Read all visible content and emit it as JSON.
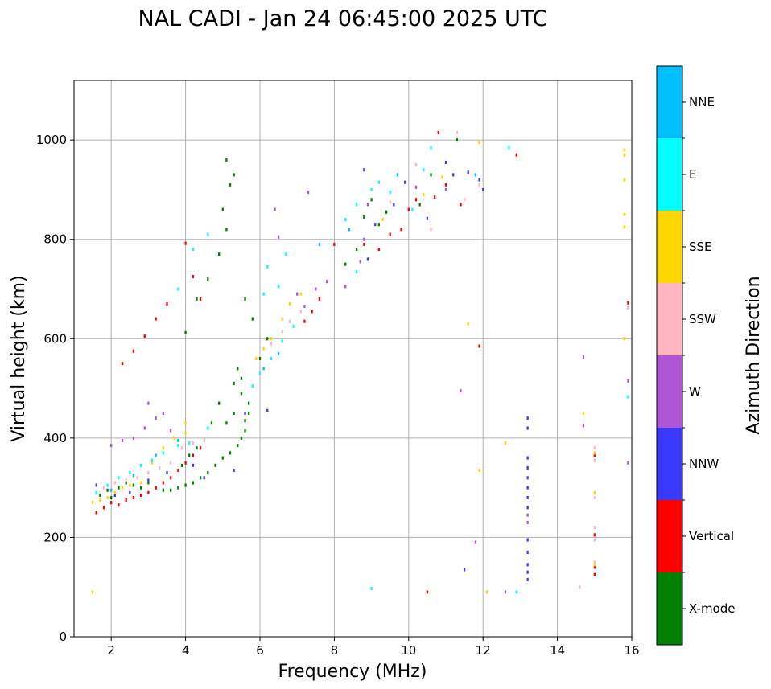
{
  "chart_data": {
    "type": "scatter",
    "title": "NAL CADI - Jan 24 06:45:00 2025 UTC",
    "xlabel": "Frequency (MHz)",
    "ylabel": "Virtual height (km)",
    "xlim": [
      1,
      16
    ],
    "ylim": [
      0,
      1120
    ],
    "xticks": [
      "2",
      "4",
      "6",
      "8",
      "10",
      "12",
      "14",
      "16"
    ],
    "yticks": [
      "0",
      "200",
      "400",
      "600",
      "800",
      "1000"
    ],
    "grid": true,
    "colorbar": {
      "label": "Azimuth Direction",
      "categories": [
        {
          "name": "X-mode",
          "color": "#008000"
        },
        {
          "name": "Vertical",
          "color": "#ff0000"
        },
        {
          "name": "NNW",
          "color": "#3a3aff"
        },
        {
          "name": "W",
          "color": "#b055d6"
        },
        {
          "name": "SSW",
          "color": "#ffb6c1"
        },
        {
          "name": "SSE",
          "color": "#ffd700"
        },
        {
          "name": "E",
          "color": "#00ffff"
        },
        {
          "name": "NNE",
          "color": "#00bfff"
        }
      ]
    },
    "point_width_mhz": 0.05,
    "point_height_km": 5,
    "series": [
      {
        "name": "X-mode",
        "points": [
          [
            1.7,
            285
          ],
          [
            1.9,
            295
          ],
          [
            2.0,
            280
          ],
          [
            2.2,
            300
          ],
          [
            2.4,
            310
          ],
          [
            2.6,
            305
          ],
          [
            2.8,
            300
          ],
          [
            3.0,
            310
          ],
          [
            3.2,
            300
          ],
          [
            3.4,
            295
          ],
          [
            3.6,
            295
          ],
          [
            3.8,
            300
          ],
          [
            4.0,
            305
          ],
          [
            4.2,
            310
          ],
          [
            4.4,
            320
          ],
          [
            4.6,
            330
          ],
          [
            4.8,
            345
          ],
          [
            5.0,
            360
          ],
          [
            5.2,
            370
          ],
          [
            5.4,
            385
          ],
          [
            5.5,
            400
          ],
          [
            5.6,
            415
          ],
          [
            5.6,
            435
          ],
          [
            5.7,
            450
          ],
          [
            5.7,
            470
          ],
          [
            5.5,
            490
          ],
          [
            5.3,
            510
          ],
          [
            4.9,
            470
          ],
          [
            4.7,
            430
          ],
          [
            4.5,
            395
          ],
          [
            4.3,
            380
          ],
          [
            4.1,
            365
          ],
          [
            3.9,
            345
          ],
          [
            5.1,
            430
          ],
          [
            5.3,
            450
          ],
          [
            4.0,
            612
          ],
          [
            4.3,
            680
          ],
          [
            4.6,
            720
          ],
          [
            4.9,
            770
          ],
          [
            5.1,
            820
          ],
          [
            5.0,
            860
          ],
          [
            5.2,
            910
          ],
          [
            5.3,
            930
          ],
          [
            5.1,
            960
          ],
          [
            5.5,
            520
          ],
          [
            5.4,
            540
          ],
          [
            6.0,
            560
          ],
          [
            6.2,
            600
          ],
          [
            5.8,
            640
          ],
          [
            5.6,
            680
          ],
          [
            8.3,
            750
          ],
          [
            8.6,
            780
          ],
          [
            8.8,
            845
          ],
          [
            9.2,
            830
          ],
          [
            9.4,
            855
          ],
          [
            9.0,
            880
          ],
          [
            10.6,
            930
          ],
          [
            10.3,
            870
          ],
          [
            11.3,
            1000
          ]
        ]
      },
      {
        "name": "Vertical",
        "points": [
          [
            1.6,
            250
          ],
          [
            1.8,
            260
          ],
          [
            2.0,
            270
          ],
          [
            2.2,
            265
          ],
          [
            2.4,
            275
          ],
          [
            2.6,
            280
          ],
          [
            2.8,
            285
          ],
          [
            3.0,
            290
          ],
          [
            3.2,
            300
          ],
          [
            3.4,
            310
          ],
          [
            3.6,
            320
          ],
          [
            3.8,
            335
          ],
          [
            4.0,
            350
          ],
          [
            4.2,
            365
          ],
          [
            4.4,
            380
          ],
          [
            2.3,
            550
          ],
          [
            2.6,
            575
          ],
          [
            2.9,
            605
          ],
          [
            3.2,
            640
          ],
          [
            3.5,
            670
          ],
          [
            4.0,
            792
          ],
          [
            4.2,
            725
          ],
          [
            4.4,
            680
          ],
          [
            7.2,
            635
          ],
          [
            7.4,
            655
          ],
          [
            7.6,
            680
          ],
          [
            8.0,
            790
          ],
          [
            8.8,
            790
          ],
          [
            9.2,
            780
          ],
          [
            9.5,
            810
          ],
          [
            9.8,
            820
          ],
          [
            10.0,
            860
          ],
          [
            10.2,
            880
          ],
          [
            10.7,
            885
          ],
          [
            11.0,
            910
          ],
          [
            11.4,
            870
          ],
          [
            11.9,
            585
          ],
          [
            12.9,
            970
          ],
          [
            15.0,
            125
          ],
          [
            15.0,
            140
          ],
          [
            15.0,
            205
          ],
          [
            15.0,
            365
          ],
          [
            15.9,
            672
          ],
          [
            10.5,
            90
          ],
          [
            10.8,
            1015
          ]
        ]
      },
      {
        "name": "NNW",
        "points": [
          [
            1.6,
            305
          ],
          [
            2.1,
            285
          ],
          [
            2.5,
            290
          ],
          [
            3.0,
            315
          ],
          [
            3.5,
            330
          ],
          [
            4.2,
            345
          ],
          [
            4.5,
            320
          ],
          [
            5.3,
            335
          ],
          [
            5.6,
            450
          ],
          [
            6.2,
            455
          ],
          [
            8.9,
            760
          ],
          [
            9.1,
            830
          ],
          [
            9.6,
            870
          ],
          [
            9.9,
            915
          ],
          [
            10.5,
            842
          ],
          [
            11.0,
            955
          ],
          [
            11.2,
            930
          ],
          [
            11.6,
            935
          ],
          [
            11.9,
            920
          ],
          [
            12.0,
            900
          ],
          [
            13.2,
            115
          ],
          [
            13.2,
            130
          ],
          [
            13.2,
            145
          ],
          [
            13.2,
            170
          ],
          [
            13.2,
            195
          ],
          [
            13.2,
            260
          ],
          [
            13.2,
            280
          ],
          [
            13.2,
            300
          ],
          [
            13.2,
            320
          ],
          [
            13.2,
            340
          ],
          [
            13.2,
            360
          ],
          [
            13.2,
            420
          ],
          [
            13.2,
            440
          ],
          [
            11.5,
            135
          ],
          [
            8.8,
            940
          ]
        ]
      },
      {
        "name": "W",
        "points": [
          [
            2.0,
            385
          ],
          [
            2.3,
            395
          ],
          [
            2.6,
            400
          ],
          [
            2.9,
            420
          ],
          [
            3.2,
            440
          ],
          [
            3.4,
            450
          ],
          [
            3.6,
            415
          ],
          [
            3.0,
            470
          ],
          [
            6.4,
            860
          ],
          [
            6.5,
            805
          ],
          [
            7.0,
            690
          ],
          [
            7.2,
            665
          ],
          [
            7.5,
            700
          ],
          [
            7.8,
            715
          ],
          [
            7.3,
            895
          ],
          [
            8.3,
            705
          ],
          [
            8.7,
            755
          ],
          [
            8.8,
            800
          ],
          [
            11.4,
            495
          ],
          [
            11.8,
            190
          ],
          [
            12.6,
            90
          ],
          [
            13.2,
            230
          ],
          [
            13.2,
            245
          ],
          [
            14.7,
            563
          ],
          [
            14.7,
            425
          ],
          [
            15.9,
            350
          ],
          [
            15.9,
            515
          ],
          [
            8.9,
            870
          ],
          [
            10.2,
            905
          ],
          [
            11.0,
            900
          ]
        ]
      },
      {
        "name": "SSW",
        "points": [
          [
            1.8,
            300
          ],
          [
            2.1,
            310
          ],
          [
            2.4,
            315
          ],
          [
            2.7,
            320
          ],
          [
            3.0,
            330
          ],
          [
            3.3,
            340
          ],
          [
            3.6,
            350
          ],
          [
            3.9,
            380
          ],
          [
            4.2,
            390
          ],
          [
            4.5,
            395
          ],
          [
            6.3,
            590
          ],
          [
            6.6,
            615
          ],
          [
            6.8,
            635
          ],
          [
            7.1,
            655
          ],
          [
            9.5,
            875
          ],
          [
            10.2,
            950
          ],
          [
            10.6,
            820
          ],
          [
            11.5,
            880
          ],
          [
            11.9,
            910
          ],
          [
            15.0,
            380
          ],
          [
            15.0,
            355
          ],
          [
            15.0,
            220
          ],
          [
            15.0,
            195
          ],
          [
            15.0,
            150
          ],
          [
            14.6,
            100
          ],
          [
            15.9,
            662
          ],
          [
            11.3,
            1015
          ],
          [
            15.0,
            280
          ]
        ]
      },
      {
        "name": "SSE",
        "points": [
          [
            1.5,
            270
          ],
          [
            1.7,
            275
          ],
          [
            1.9,
            280
          ],
          [
            2.1,
            290
          ],
          [
            2.3,
            300
          ],
          [
            2.5,
            305
          ],
          [
            2.8,
            310
          ],
          [
            3.1,
            350
          ],
          [
            3.4,
            380
          ],
          [
            3.7,
            400
          ],
          [
            4.0,
            430
          ],
          [
            4.0,
            410
          ],
          [
            5.9,
            560
          ],
          [
            6.1,
            580
          ],
          [
            6.3,
            600
          ],
          [
            6.6,
            640
          ],
          [
            6.8,
            670
          ],
          [
            7.1,
            690
          ],
          [
            9.3,
            840
          ],
          [
            10.4,
            890
          ],
          [
            10.9,
            925
          ],
          [
            11.6,
            630
          ],
          [
            11.9,
            335
          ],
          [
            11.9,
            995
          ],
          [
            12.1,
            90
          ],
          [
            12.6,
            390
          ],
          [
            14.7,
            450
          ],
          [
            15.0,
            370
          ],
          [
            15.0,
            290
          ],
          [
            15.0,
            145
          ],
          [
            15.8,
            980
          ],
          [
            15.8,
            920
          ],
          [
            15.8,
            850
          ],
          [
            15.8,
            825
          ],
          [
            15.8,
            600
          ],
          [
            1.5,
            90
          ],
          [
            15.8,
            970
          ]
        ]
      },
      {
        "name": "E",
        "points": [
          [
            1.6,
            290
          ],
          [
            1.9,
            305
          ],
          [
            2.2,
            320
          ],
          [
            2.5,
            330
          ],
          [
            2.8,
            345
          ],
          [
            3.1,
            355
          ],
          [
            3.4,
            370
          ],
          [
            3.8,
            385
          ],
          [
            4.1,
            390
          ],
          [
            4.6,
            420
          ],
          [
            5.8,
            505
          ],
          [
            6.0,
            530
          ],
          [
            6.3,
            560
          ],
          [
            6.6,
            595
          ],
          [
            6.9,
            625
          ],
          [
            6.5,
            705
          ],
          [
            6.2,
            745
          ],
          [
            6.7,
            770
          ],
          [
            8.3,
            840
          ],
          [
            8.6,
            870
          ],
          [
            9.0,
            900
          ],
          [
            9.2,
            915
          ],
          [
            9.5,
            895
          ],
          [
            10.1,
            860
          ],
          [
            10.4,
            940
          ],
          [
            10.6,
            985
          ],
          [
            12.7,
            985
          ],
          [
            9.0,
            97
          ],
          [
            12.9,
            90
          ],
          [
            15.9,
            483
          ],
          [
            4.6,
            810
          ],
          [
            4.2,
            780
          ],
          [
            3.8,
            700
          ],
          [
            6.1,
            690
          ],
          [
            8.6,
            735
          ]
        ]
      },
      {
        "name": "NNE",
        "points": [
          [
            2.0,
            295
          ],
          [
            2.6,
            325
          ],
          [
            3.2,
            365
          ],
          [
            3.8,
            395
          ],
          [
            6.1,
            540
          ],
          [
            6.5,
            570
          ],
          [
            7.6,
            790
          ],
          [
            8.4,
            820
          ],
          [
            9.7,
            930
          ],
          [
            11.8,
            930
          ]
        ]
      }
    ]
  }
}
